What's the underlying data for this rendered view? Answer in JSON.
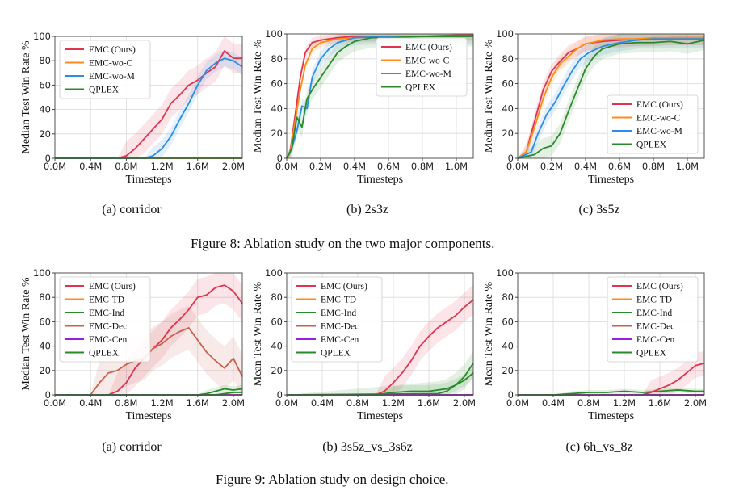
{
  "colors": {
    "EMC (Ours)": "#e0334f",
    "EMC-wo-C": "#ff8c1a",
    "EMC-wo-M": "#2a8de8",
    "QPLEX": "#2a8a2a",
    "EMC-TD": "#ff8c1a",
    "EMC-Ind": "#2a8a2a",
    "EMC-Dec": "#c8604a",
    "EMC-Cen": "#9a1ee0",
    "grid": "#d9d9d9"
  },
  "figure8_caption": "Figure 8: Ablation study on the two major components.",
  "figure9_caption": "Figure 9: Ablation study on design choice.",
  "chart_data": [
    {
      "id": "f8a",
      "type": "line",
      "subcaption": "(a) corridor",
      "xlabel": "Timesteps",
      "ylabel": "Median Test Win Rate %",
      "xlim": [
        0,
        2.1
      ],
      "ylim": [
        0,
        100
      ],
      "xticks": [
        0,
        0.4,
        0.8,
        1.2,
        1.6,
        2.0
      ],
      "xtick_labels": [
        "0.0M",
        "0.4M",
        "0.8M",
        "1.2M",
        "1.6M",
        "2.0M"
      ],
      "yticks": [
        0,
        20,
        40,
        60,
        80,
        100
      ],
      "legend_loc": "upper-left",
      "series": [
        {
          "name": "EMC (Ours)",
          "x": [
            0,
            0.7,
            0.8,
            0.9,
            1.0,
            1.1,
            1.2,
            1.3,
            1.4,
            1.5,
            1.6,
            1.7,
            1.8,
            1.9,
            2.0,
            2.1
          ],
          "y": [
            0,
            0,
            2,
            8,
            16,
            24,
            32,
            45,
            52,
            60,
            64,
            70,
            75,
            88,
            82,
            82
          ],
          "band": 12
        },
        {
          "name": "EMC-wo-C",
          "x": [
            0,
            2.1
          ],
          "y": [
            0,
            0
          ],
          "band": 0
        },
        {
          "name": "EMC-wo-M",
          "x": [
            0,
            1.0,
            1.1,
            1.2,
            1.3,
            1.4,
            1.5,
            1.6,
            1.7,
            1.8,
            1.9,
            2.0,
            2.1
          ],
          "y": [
            0,
            0,
            2,
            8,
            18,
            32,
            45,
            60,
            72,
            78,
            82,
            80,
            75
          ],
          "band": 7
        },
        {
          "name": "QPLEX",
          "x": [
            0,
            2.1
          ],
          "y": [
            0,
            0
          ],
          "band": 0
        }
      ]
    },
    {
      "id": "f8b",
      "type": "line",
      "subcaption": "(b) 2s3z",
      "xlabel": "Timesteps",
      "ylabel": "Median Test Win Rate %",
      "xlim": [
        0,
        1.1
      ],
      "ylim": [
        0,
        100
      ],
      "xticks": [
        0,
        0.2,
        0.4,
        0.6,
        0.8,
        1.0
      ],
      "xtick_labels": [
        "0.0M",
        "0.2M",
        "0.4M",
        "0.6M",
        "0.8M",
        "1.0M"
      ],
      "yticks": [
        0,
        20,
        40,
        60,
        80,
        100
      ],
      "legend_loc": "upper-right",
      "series": [
        {
          "name": "EMC (Ours)",
          "x": [
            0,
            0.02,
            0.05,
            0.08,
            0.11,
            0.15,
            0.2,
            0.3,
            0.4,
            0.6,
            0.8,
            1.0,
            1.1
          ],
          "y": [
            0,
            5,
            35,
            65,
            85,
            93,
            95,
            97,
            98,
            98,
            98,
            99,
            99
          ],
          "band": 4
        },
        {
          "name": "EMC-wo-C",
          "x": [
            0,
            0.02,
            0.05,
            0.08,
            0.11,
            0.15,
            0.2,
            0.3,
            0.4,
            0.6,
            0.8,
            1.0,
            1.1
          ],
          "y": [
            0,
            4,
            30,
            55,
            75,
            88,
            93,
            96,
            97,
            98,
            98,
            98,
            98
          ],
          "band": 4
        },
        {
          "name": "EMC-wo-M",
          "x": [
            0,
            0.03,
            0.06,
            0.09,
            0.12,
            0.15,
            0.2,
            0.25,
            0.3,
            0.4,
            0.6,
            0.8,
            1.0,
            1.1
          ],
          "y": [
            0,
            8,
            22,
            42,
            40,
            65,
            80,
            88,
            93,
            97,
            98,
            98,
            98,
            98
          ],
          "band": 6
        },
        {
          "name": "QPLEX",
          "x": [
            0,
            0.03,
            0.06,
            0.09,
            0.12,
            0.15,
            0.2,
            0.25,
            0.3,
            0.35,
            0.4,
            0.5,
            0.6,
            0.8,
            1.0,
            1.1
          ],
          "y": [
            0,
            8,
            33,
            25,
            48,
            55,
            65,
            75,
            85,
            90,
            94,
            97,
            97,
            98,
            98,
            98
          ],
          "band": 8
        }
      ]
    },
    {
      "id": "f8c",
      "type": "line",
      "subcaption": "(c) 3s5z",
      "xlabel": "Timesteps",
      "ylabel": "Median Test Win Rate %",
      "xlim": [
        0,
        1.1
      ],
      "ylim": [
        0,
        100
      ],
      "xticks": [
        0,
        0.2,
        0.4,
        0.6,
        0.8,
        1.0
      ],
      "xtick_labels": [
        "0.0M",
        "0.2M",
        "0.4M",
        "0.6M",
        "0.8M",
        "1.0M"
      ],
      "yticks": [
        0,
        20,
        40,
        60,
        80,
        100
      ],
      "legend_loc": "lower-right",
      "series": [
        {
          "name": "EMC (Ours)",
          "x": [
            0,
            0.05,
            0.1,
            0.15,
            0.2,
            0.25,
            0.3,
            0.35,
            0.4,
            0.5,
            0.6,
            0.7,
            0.8,
            0.9,
            1.0,
            1.1
          ],
          "y": [
            0,
            5,
            30,
            55,
            70,
            78,
            85,
            88,
            92,
            94,
            95,
            96,
            96,
            97,
            97,
            97
          ],
          "band": 6
        },
        {
          "name": "EMC-wo-C",
          "x": [
            0,
            0.05,
            0.1,
            0.15,
            0.2,
            0.25,
            0.3,
            0.35,
            0.4,
            0.5,
            0.6,
            0.7,
            0.8,
            0.9,
            1.0,
            1.1
          ],
          "y": [
            0,
            5,
            25,
            48,
            65,
            76,
            82,
            88,
            92,
            95,
            96,
            96,
            97,
            97,
            97,
            97
          ],
          "band": 6
        },
        {
          "name": "EMC-wo-M",
          "x": [
            0,
            0.08,
            0.12,
            0.17,
            0.22,
            0.27,
            0.32,
            0.37,
            0.42,
            0.5,
            0.6,
            0.7,
            0.8,
            0.9,
            1.0,
            1.1
          ],
          "y": [
            0,
            5,
            20,
            35,
            45,
            58,
            70,
            80,
            85,
            90,
            93,
            95,
            96,
            96,
            96,
            96
          ],
          "band": 7
        },
        {
          "name": "QPLEX",
          "x": [
            0,
            0.1,
            0.15,
            0.2,
            0.25,
            0.3,
            0.35,
            0.4,
            0.45,
            0.5,
            0.6,
            0.7,
            0.8,
            0.9,
            1.0,
            1.1
          ],
          "y": [
            0,
            3,
            8,
            10,
            20,
            38,
            55,
            72,
            82,
            88,
            92,
            93,
            93,
            94,
            92,
            95
          ],
          "band": 8
        }
      ]
    },
    {
      "id": "f9a",
      "type": "line",
      "subcaption": "(a) corridor",
      "xlabel": "Timesteps",
      "ylabel": "Median Test Win Rate %",
      "xlim": [
        0,
        2.1
      ],
      "ylim": [
        0,
        100
      ],
      "xticks": [
        0,
        0.4,
        0.8,
        1.2,
        1.6,
        2.0
      ],
      "xtick_labels": [
        "0.0M",
        "0.4M",
        "0.8M",
        "1.2M",
        "1.6M",
        "2.0M"
      ],
      "yticks": [
        0,
        20,
        40,
        60,
        80,
        100
      ],
      "legend_loc": "upper-left",
      "series": [
        {
          "name": "EMC (Ours)",
          "x": [
            0,
            0.6,
            0.7,
            0.8,
            0.9,
            1.0,
            1.1,
            1.2,
            1.3,
            1.4,
            1.5,
            1.6,
            1.7,
            1.8,
            1.9,
            2.0,
            2.1
          ],
          "y": [
            0,
            0,
            3,
            10,
            22,
            30,
            38,
            45,
            55,
            62,
            70,
            80,
            82,
            88,
            90,
            85,
            75
          ],
          "band": 15
        },
        {
          "name": "EMC-TD",
          "x": [
            0,
            2.1
          ],
          "y": [
            0,
            0
          ],
          "band": 0
        },
        {
          "name": "EMC-Ind",
          "x": [
            0,
            1.6,
            1.7,
            1.8,
            1.9,
            2.0,
            2.1
          ],
          "y": [
            0,
            0,
            1,
            3,
            5,
            4,
            5
          ],
          "band": 3
        },
        {
          "name": "EMC-Dec",
          "x": [
            0,
            0.4,
            0.5,
            0.6,
            0.7,
            0.8,
            0.9,
            1.0,
            1.1,
            1.2,
            1.3,
            1.4,
            1.5,
            1.6,
            1.7,
            1.8,
            1.9,
            2.0,
            2.1
          ],
          "y": [
            0,
            0,
            10,
            18,
            20,
            25,
            28,
            30,
            38,
            42,
            48,
            52,
            55,
            45,
            35,
            28,
            22,
            30,
            15
          ],
          "band": 18
        },
        {
          "name": "EMC-Cen",
          "x": [
            0,
            2.1
          ],
          "y": [
            0,
            0
          ],
          "band": 0
        },
        {
          "name": "QPLEX",
          "x": [
            0,
            1.8,
            1.9,
            2.0,
            2.1
          ],
          "y": [
            0,
            0,
            1,
            2,
            2
          ],
          "band": 1
        }
      ]
    },
    {
      "id": "f9b",
      "type": "line",
      "subcaption": "(b) 3s5z_vs_3s6z",
      "xlabel": "Timesteps",
      "ylabel": "Mean Test Win Rate %",
      "xlim": [
        0,
        2.1
      ],
      "ylim": [
        0,
        100
      ],
      "xticks": [
        0,
        0.4,
        0.8,
        1.2,
        1.6,
        2.0
      ],
      "xtick_labels": [
        "0.0M",
        "0.4M",
        "0.8M",
        "1.2M",
        "1.6M",
        "2.0M"
      ],
      "yticks": [
        0,
        20,
        40,
        60,
        80,
        100
      ],
      "legend_loc": "upper-left",
      "series": [
        {
          "name": "EMC (Ours)",
          "x": [
            0,
            1.0,
            1.1,
            1.2,
            1.3,
            1.4,
            1.5,
            1.6,
            1.7,
            1.8,
            1.9,
            2.0,
            2.1
          ],
          "y": [
            0,
            0,
            3,
            10,
            18,
            28,
            40,
            48,
            55,
            60,
            65,
            72,
            78
          ],
          "band": 12
        },
        {
          "name": "EMC-TD",
          "x": [
            0,
            2.1
          ],
          "y": [
            0,
            0
          ],
          "band": 0
        },
        {
          "name": "EMC-Ind",
          "x": [
            0,
            1.7,
            1.8,
            1.9,
            2.0,
            2.1
          ],
          "y": [
            0,
            1,
            3,
            8,
            15,
            26
          ],
          "band": 10
        },
        {
          "name": "EMC-Dec",
          "x": [
            0,
            2.1
          ],
          "y": [
            0,
            0
          ],
          "band": 0
        },
        {
          "name": "EMC-Cen",
          "x": [
            0,
            2.1
          ],
          "y": [
            0,
            0
          ],
          "band": 0
        },
        {
          "name": "QPLEX",
          "x": [
            0,
            1.0,
            1.2,
            1.4,
            1.6,
            1.8,
            1.9,
            2.0,
            2.1
          ],
          "y": [
            0,
            0,
            2,
            3,
            3,
            5,
            8,
            12,
            18
          ],
          "band": 5
        }
      ]
    },
    {
      "id": "f9c",
      "type": "line",
      "subcaption": "(c) 6h_vs_8z",
      "xlabel": "Timesteps",
      "ylabel": "Mean Test Win Rate %",
      "xlim": [
        0,
        2.1
      ],
      "ylim": [
        0,
        100
      ],
      "xticks": [
        0,
        0.4,
        0.8,
        1.2,
        1.6,
        2.0
      ],
      "xtick_labels": [
        "0.0M",
        "0.4M",
        "0.8M",
        "1.2M",
        "1.6M",
        "2.0M"
      ],
      "yticks": [
        0,
        20,
        40,
        60,
        80,
        100
      ],
      "legend_loc": "upper-right",
      "series": [
        {
          "name": "EMC (Ours)",
          "x": [
            0,
            1.4,
            1.5,
            1.6,
            1.7,
            1.8,
            1.9,
            2.0,
            2.1
          ],
          "y": [
            0,
            0,
            2,
            5,
            8,
            12,
            18,
            24,
            26
          ],
          "band": 10
        },
        {
          "name": "EMC-TD",
          "x": [
            0,
            2.1
          ],
          "y": [
            0,
            0
          ],
          "band": 0
        },
        {
          "name": "EMC-Ind",
          "x": [
            0,
            2.1
          ],
          "y": [
            0,
            0
          ],
          "band": 0
        },
        {
          "name": "EMC-Dec",
          "x": [
            0,
            2.1
          ],
          "y": [
            0,
            0
          ],
          "band": 0
        },
        {
          "name": "EMC-Cen",
          "x": [
            0,
            2.1
          ],
          "y": [
            0,
            0
          ],
          "band": 0
        },
        {
          "name": "QPLEX",
          "x": [
            0,
            0.4,
            0.6,
            0.8,
            1.0,
            1.2,
            1.4,
            1.6,
            1.8,
            2.0,
            2.1
          ],
          "y": [
            0,
            0,
            1,
            2,
            2,
            3,
            2,
            3,
            4,
            3,
            3
          ],
          "band": 2
        }
      ]
    }
  ]
}
